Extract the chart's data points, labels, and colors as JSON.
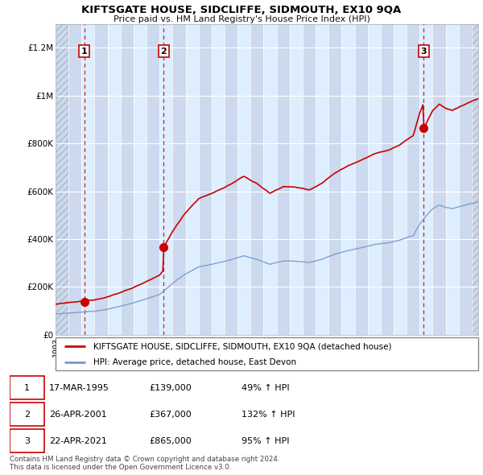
{
  "title": "KIFTSGATE HOUSE, SIDCLIFFE, SIDMOUTH, EX10 9QA",
  "subtitle": "Price paid vs. HM Land Registry's House Price Index (HPI)",
  "ylabel_ticks": [
    "£0",
    "£200K",
    "£400K",
    "£600K",
    "£800K",
    "£1M",
    "£1.2M"
  ],
  "ytick_values": [
    0,
    200000,
    400000,
    600000,
    800000,
    1000000,
    1200000
  ],
  "ylim": [
    0,
    1300000
  ],
  "xlim_start": 1993.0,
  "xlim_end": 2025.5,
  "sale_dates": [
    1995.21,
    2001.32,
    2021.31
  ],
  "sale_prices": [
    139000,
    367000,
    865000
  ],
  "sale_labels": [
    "1",
    "2",
    "3"
  ],
  "legend_line1": "KIFTSGATE HOUSE, SIDCLIFFE, SIDMOUTH, EX10 9QA (detached house)",
  "legend_line2": "HPI: Average price, detached house, East Devon",
  "table_data": [
    [
      "1",
      "17-MAR-1995",
      "£139,000",
      "49% ↑ HPI"
    ],
    [
      "2",
      "26-APR-2001",
      "£367,000",
      "132% ↑ HPI"
    ],
    [
      "3",
      "22-APR-2021",
      "£865,000",
      "95% ↑ HPI"
    ]
  ],
  "footnote": "Contains HM Land Registry data © Crown copyright and database right 2024.\nThis data is licensed under the Open Government Licence v3.0.",
  "hpi_color": "#7799cc",
  "house_color": "#cc0000",
  "grid_color": "#cccccc",
  "sale_vline_color": "#cc0000",
  "hatch_color": "#aabbcc"
}
